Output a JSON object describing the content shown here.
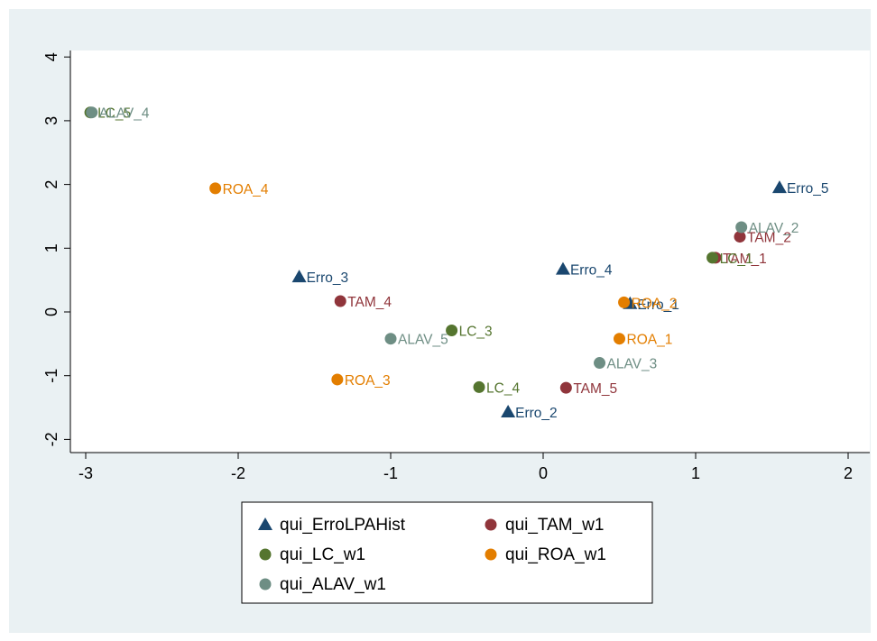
{
  "chart_data": {
    "type": "scatter",
    "title": "",
    "xlabel": "",
    "ylabel": "",
    "xlim": [
      -3.1,
      2.05
    ],
    "ylim": [
      -2.2,
      4.2
    ],
    "xticks": [
      -3,
      -2,
      -1,
      0,
      1,
      2
    ],
    "yticks": [
      -2,
      -1,
      0,
      1,
      2,
      3,
      4
    ],
    "xtick_labels": [
      "-3",
      "-2",
      "-1",
      "0",
      "1",
      "2"
    ],
    "ytick_labels": [
      "-2",
      "-1",
      "0",
      "1",
      "2",
      "3",
      "4"
    ],
    "grid": false,
    "legend_position": "bottom",
    "colors": {
      "background": "#eaf1f3",
      "plot_area": "#ffffff",
      "erro": "#1a476f",
      "tam": "#90353b",
      "lc": "#55752f",
      "roa": "#e37e00",
      "alav": "#6e8e84"
    },
    "series": [
      {
        "name": "qui_ErroLPAHist",
        "marker": "triangle",
        "color": "#1a476f",
        "points": [
          {
            "x": 1.55,
            "y": 1.95,
            "label": "Erro_5"
          },
          {
            "x": -1.6,
            "y": 0.55,
            "label": "Erro_3"
          },
          {
            "x": 0.13,
            "y": 0.67,
            "label": "Erro_4"
          },
          {
            "x": 0.57,
            "y": 0.13,
            "label": "Erro_1"
          },
          {
            "x": -0.23,
            "y": -1.57,
            "label": "Erro_2"
          }
        ]
      },
      {
        "name": "qui_TAM_w1",
        "marker": "circle",
        "color": "#90353b",
        "points": [
          {
            "x": 1.29,
            "y": 1.18,
            "label": "TAM_2"
          },
          {
            "x": 1.13,
            "y": 0.85,
            "label": "TAM_1"
          },
          {
            "x": -1.33,
            "y": 0.17,
            "label": "TAM_4"
          },
          {
            "x": 0.15,
            "y": -1.19,
            "label": "TAM_5"
          }
        ]
      },
      {
        "name": "qui_LC_w1",
        "marker": "circle",
        "color": "#55752f",
        "points": [
          {
            "x": -2.97,
            "y": 3.13,
            "label": "LC_5"
          },
          {
            "x": 1.11,
            "y": 0.85,
            "label": "LC_1"
          },
          {
            "x": -0.6,
            "y": -0.29,
            "label": "LC_3"
          },
          {
            "x": -0.42,
            "y": -1.18,
            "label": "LC_4"
          }
        ]
      },
      {
        "name": "qui_ROA_w1",
        "marker": "circle",
        "color": "#e37e00",
        "points": [
          {
            "x": -2.15,
            "y": 1.94,
            "label": "ROA_4"
          },
          {
            "x": 0.53,
            "y": 0.15,
            "label": "ROA_2"
          },
          {
            "x": 0.5,
            "y": -0.42,
            "label": "ROA_1"
          },
          {
            "x": -1.35,
            "y": -1.06,
            "label": "ROA_3"
          }
        ]
      },
      {
        "name": "qui_ALAV_w1",
        "marker": "circle",
        "color": "#6e8e84",
        "points": [
          {
            "x": -2.96,
            "y": 3.13,
            "label": "ALAV_4"
          },
          {
            "x": 1.3,
            "y": 1.33,
            "label": "ALAV_2"
          },
          {
            "x": -1.0,
            "y": -0.42,
            "label": "ALAV_5"
          },
          {
            "x": 0.37,
            "y": -0.8,
            "label": "ALAV_3"
          }
        ]
      }
    ]
  },
  "legend": {
    "items": [
      {
        "label": "qui_ErroLPAHist",
        "marker": "triangle",
        "color": "#1a476f"
      },
      {
        "label": "qui_TAM_w1",
        "marker": "circle",
        "color": "#90353b"
      },
      {
        "label": "qui_LC_w1",
        "marker": "circle",
        "color": "#55752f"
      },
      {
        "label": "qui_ROA_w1",
        "marker": "circle",
        "color": "#e37e00"
      },
      {
        "label": "qui_ALAV_w1",
        "marker": "circle",
        "color": "#6e8e84"
      }
    ]
  }
}
